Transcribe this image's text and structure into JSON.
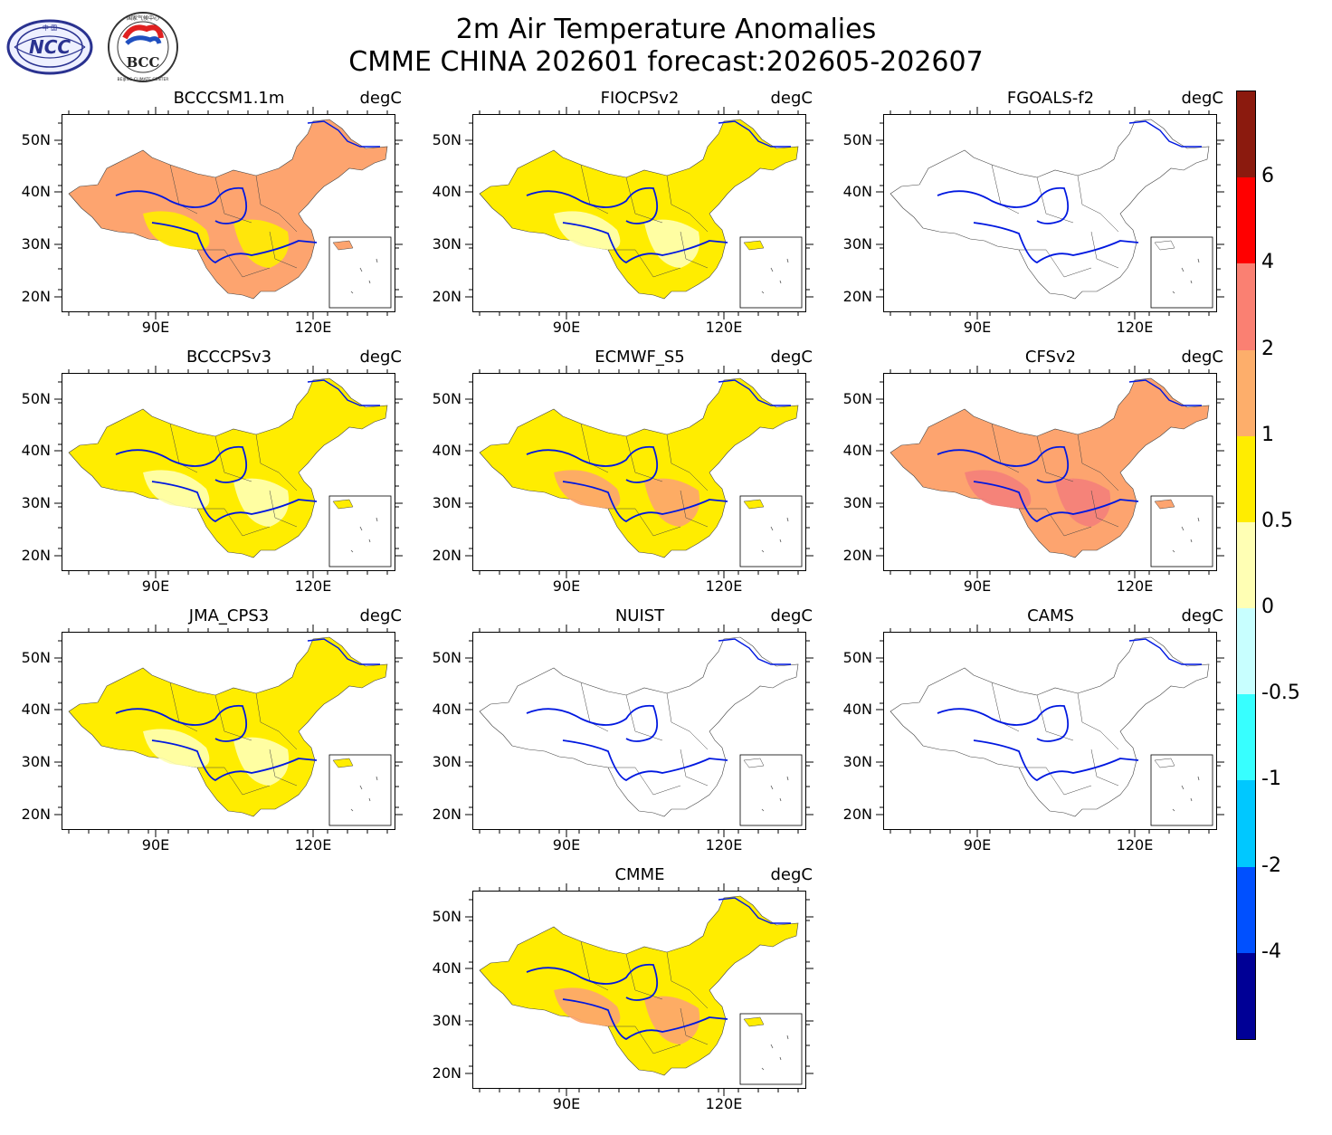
{
  "title": {
    "line1": "2m Air Temperature Anomalies",
    "line2": "CMME CHINA 202601 forecast:202605-202607"
  },
  "logos": {
    "ncc": {
      "text": "NCC",
      "small": "中 国"
    },
    "bcc": {
      "text": "BCC",
      "ring": "BEIJING CLIMATE CENTER",
      "top": "国家气候中心"
    }
  },
  "axes": {
    "y_ticks": [
      "50N",
      "40N",
      "30N",
      "20N"
    ],
    "x_ticks": [
      "90E",
      "120E"
    ]
  },
  "panels": [
    {
      "name": "BCCCSM1.1m",
      "unit": "degC",
      "fill": "#fda46f",
      "second": "#ffed00",
      "empty": false
    },
    {
      "name": "FIOCPSv2",
      "unit": "degC",
      "fill": "#ffed00",
      "second": "#ffffb4",
      "empty": false
    },
    {
      "name": "FGOALS-f2",
      "unit": "degC",
      "fill": "none",
      "second": "none",
      "empty": true
    },
    {
      "name": "BCCCPSv3",
      "unit": "degC",
      "fill": "#ffed00",
      "second": "#ffffb4",
      "empty": false
    },
    {
      "name": "ECMWF_S5",
      "unit": "degC",
      "fill": "#ffed00",
      "second": "#fda46f",
      "empty": false
    },
    {
      "name": "CFSv2",
      "unit": "degC",
      "fill": "#fda46f",
      "second": "#f4807a",
      "empty": false
    },
    {
      "name": "JMA_CPS3",
      "unit": "degC",
      "fill": "#ffed00",
      "second": "#ffffb4",
      "empty": false
    },
    {
      "name": "NUIST",
      "unit": "degC",
      "fill": "none",
      "second": "none",
      "empty": true
    },
    {
      "name": "CAMS",
      "unit": "degC",
      "fill": "none",
      "second": "none",
      "empty": true
    },
    {
      "name": "CMME",
      "unit": "degC",
      "fill": "#ffed00",
      "second": "#fda46f",
      "empty": false
    }
  ],
  "colorbar": {
    "labels": [
      "6",
      "4",
      "2",
      "1",
      "0.5",
      "0",
      "-0.5",
      "-1",
      "-2",
      "-4"
    ],
    "colors": [
      "#8b1a0e",
      "#ff0000",
      "#fa8072",
      "#fdae6b",
      "#ffed00",
      "#ffffb4",
      "#c8ffff",
      "#37ffff",
      "#00c8ff",
      "#0050ff",
      "#000096"
    ]
  }
}
